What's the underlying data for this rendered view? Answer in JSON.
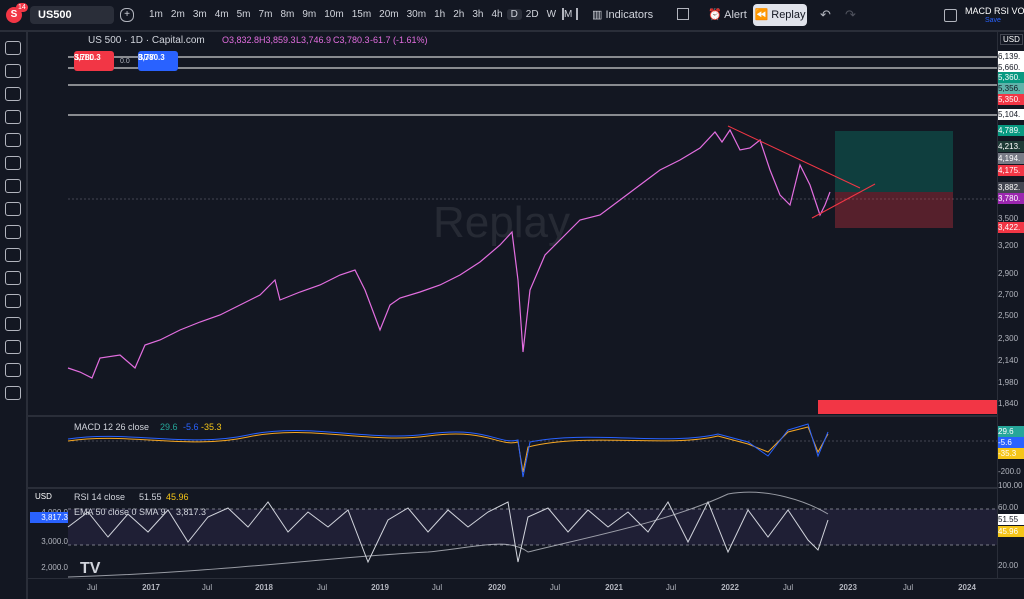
{
  "toolbar": {
    "badge": "14",
    "symbol": "US500",
    "timeframes": [
      "1m",
      "2m",
      "3m",
      "4m",
      "5m",
      "7m",
      "8m",
      "9m",
      "10m",
      "15m",
      "20m",
      "30m",
      "1h",
      "2h",
      "3h",
      "4h",
      "D",
      "2D",
      "W",
      "M"
    ],
    "indicators": "Indicators",
    "alert": "Alert",
    "replay": "Replay",
    "layout_name": "MACD RSI VOL",
    "save": "Save"
  },
  "legend": {
    "title": "US 500 · 1D · Capital.com",
    "open": "O3,832.8",
    "high": "H3,859.3",
    "low": "L3,746.9",
    "close": "C3,780.3",
    "change": "-61.7 (-1.61%)"
  },
  "trade": {
    "sell_price": "3,780.3",
    "sell": "SELL",
    "spread": "0.0",
    "buy_price": "3,780.3",
    "buy": "BUY"
  },
  "watermark": "Replay",
  "price_axis": {
    "currency": "USD",
    "labels": [
      {
        "text": "6,139.",
        "color": "#ffffff"
      },
      {
        "text": "5,660.",
        "color": "#ffffff"
      },
      {
        "text": "5,360.",
        "color": "#089981"
      },
      {
        "text": "5,356.",
        "color": "#5fb3aa"
      },
      {
        "text": "5,350.",
        "color": "#f23645"
      },
      {
        "text": "5,104.",
        "color": "#ffffff"
      },
      {
        "text": "4,789.",
        "color": "#089981"
      },
      {
        "text": "4,213.",
        "color": "#1e3a36"
      },
      {
        "text": "4,194.",
        "color": "#787b86"
      },
      {
        "text": "4,175.",
        "color": "#f23645"
      },
      {
        "text": "3,882.",
        "color": "#434651"
      },
      {
        "text": "3,780.",
        "color": "#9c27b0"
      },
      {
        "text": "3,500",
        "color": null
      },
      {
        "text": "3,422.",
        "color": "#f23645"
      },
      {
        "text": "3,200",
        "color": null
      },
      {
        "text": "2,900",
        "color": null
      },
      {
        "text": "2,700",
        "color": null
      },
      {
        "text": "2,500",
        "color": null
      },
      {
        "text": "2,300",
        "color": null
      },
      {
        "text": "2,140",
        "color": null
      },
      {
        "text": "1,980",
        "color": null
      },
      {
        "text": "1,840",
        "color": null
      }
    ]
  },
  "macd": {
    "label": "MACD 12 26 close",
    "macd": "29.6",
    "signal": "-5.6",
    "histogram": "-35.3",
    "axis_labels": [
      {
        "text": "29.6",
        "color": "#26a69a"
      },
      {
        "text": "-5.6",
        "color": "#2962ff"
      },
      {
        "text": "-35.3",
        "color": "#f5c518"
      },
      {
        "text": "-200.0",
        "color": null
      }
    ]
  },
  "rsi": {
    "currency": "USD",
    "label": "RSI 14 close",
    "rsi": "51.55",
    "rsi_ma": "45.96",
    "ema_label": "EMA 50 close 0 SMA 9",
    "ema_value": "3,817.3",
    "left_labels": [
      {
        "text": "4,000.0",
        "color": null
      },
      {
        "text": "3,817.3",
        "color": "#2962ff"
      },
      {
        "text": "3,000.0",
        "color": null
      },
      {
        "text": "2,000.0",
        "color": null
      }
    ],
    "right_labels": [
      {
        "text": "100.00",
        "color": null
      },
      {
        "text": "60.00",
        "color": null
      },
      {
        "text": "51.55",
        "color": "#ffffff"
      },
      {
        "text": "45.96",
        "color": "#f5c518"
      },
      {
        "text": "20.00",
        "color": null
      }
    ]
  },
  "time_axis": [
    "Jul",
    "2017",
    "Jul",
    "2018",
    "Jul",
    "2019",
    "Jul",
    "2020",
    "Jul",
    "2021",
    "Jul",
    "2022",
    "Jul",
    "2023",
    "Jul",
    "2024"
  ]
}
